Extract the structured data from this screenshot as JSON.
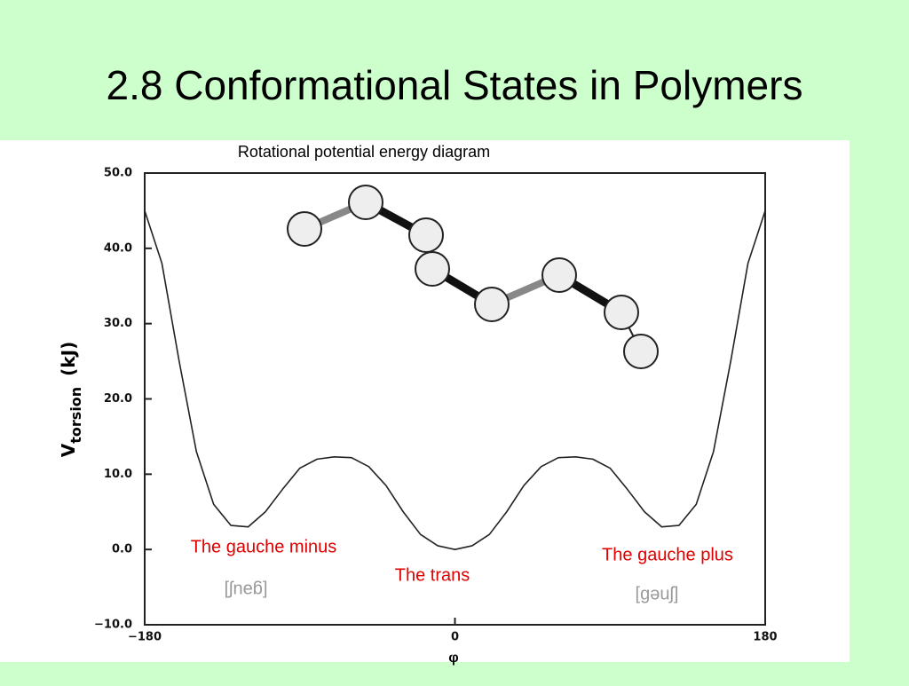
{
  "title": "2.8 Conformational States in Polymers",
  "chart_data": {
    "type": "line",
    "title": "Rotational potential energy diagram",
    "ylabel": {
      "symbol": "V",
      "subscript": "torsion",
      "unit": "(kJ)"
    },
    "xlabel": "φ",
    "x": [
      -180,
      -170,
      -160,
      -150,
      -140,
      -130,
      -120,
      -110,
      -100,
      -90,
      -80,
      -70,
      -60,
      -50,
      -40,
      -30,
      -20,
      -10,
      0,
      10,
      20,
      30,
      40,
      50,
      60,
      70,
      80,
      90,
      100,
      110,
      120,
      130,
      140,
      150,
      160,
      170,
      180
    ],
    "series": [
      {
        "color": "#222222",
        "values": [
          45,
          38,
          25,
          13,
          6,
          3.2,
          3,
          5,
          8,
          10.8,
          12,
          12.3,
          12.2,
          11,
          8.5,
          5,
          2,
          0.5,
          0,
          0.5,
          2,
          5,
          8.5,
          11,
          12.2,
          12.3,
          12,
          10.8,
          8,
          5,
          3,
          3.2,
          6,
          13,
          25,
          38,
          45
        ]
      }
    ],
    "xlim": [
      -180,
      180
    ],
    "xticks": [
      {
        "value": -180,
        "label": "−180"
      },
      0,
      180
    ],
    "ylim": [
      -10,
      50
    ],
    "yticks": [
      {
        "value": -10,
        "label": "−10.0"
      },
      {
        "value": 0,
        "label": "0.0"
      },
      {
        "value": 10,
        "label": "10.0"
      },
      {
        "value": 20,
        "label": "20.0"
      },
      {
        "value": 30,
        "label": "30.0"
      },
      {
        "value": 40,
        "label": "40.0"
      },
      {
        "value": 50,
        "label": "50.0"
      }
    ],
    "annotations": [
      "The gauche minus",
      "The trans",
      "The gauche plus",
      "[gəuʃ]",
      "[gəuʃ]"
    ]
  }
}
